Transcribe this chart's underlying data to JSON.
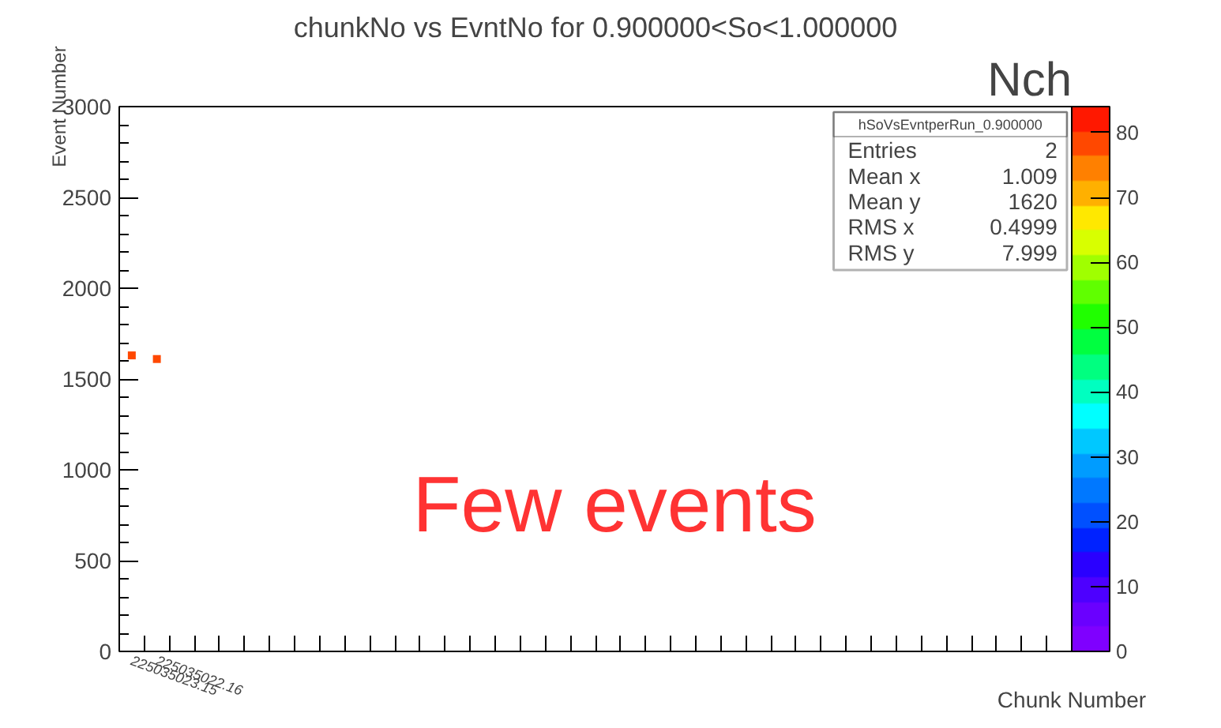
{
  "chart_data": {
    "type": "scatter",
    "title": "chunkNo vs EvntNo for 0.900000<So<1.000000",
    "xlabel": "Chunk Number",
    "ylabel": "Event Number",
    "clabel": "Nch",
    "categories": [
      "225035023.15",
      "225035022.16",
      null,
      null,
      null,
      null,
      null,
      null,
      null,
      null,
      null,
      null,
      null,
      null,
      null,
      null,
      null,
      null,
      null,
      null,
      null,
      null,
      null,
      null,
      null,
      null,
      null,
      null,
      null,
      null,
      null,
      null,
      null,
      null,
      null,
      null,
      null,
      null
    ],
    "series": [
      {
        "x": [
          "225035023.15",
          "225035022.16"
        ],
        "values": [
          1630,
          1610
        ],
        "cvalues": [
          80,
          80
        ]
      }
    ],
    "ylim": [
      0,
      3000
    ],
    "yticks": [
      0,
      500,
      1000,
      1500,
      2000,
      2500,
      3000
    ],
    "clim": [
      0,
      84
    ],
    "cticks": [
      0,
      10,
      20,
      30,
      40,
      50,
      60,
      70,
      80
    ],
    "annotations": [
      "hSoVsEvntperRun_0.900000",
      "Entries",
      "2",
      "Mean x",
      "1.009",
      "Mean y",
      "1620",
      "RMS x",
      "0.4999",
      "RMS y",
      "7.999",
      "Few events"
    ],
    "grid": false
  }
}
